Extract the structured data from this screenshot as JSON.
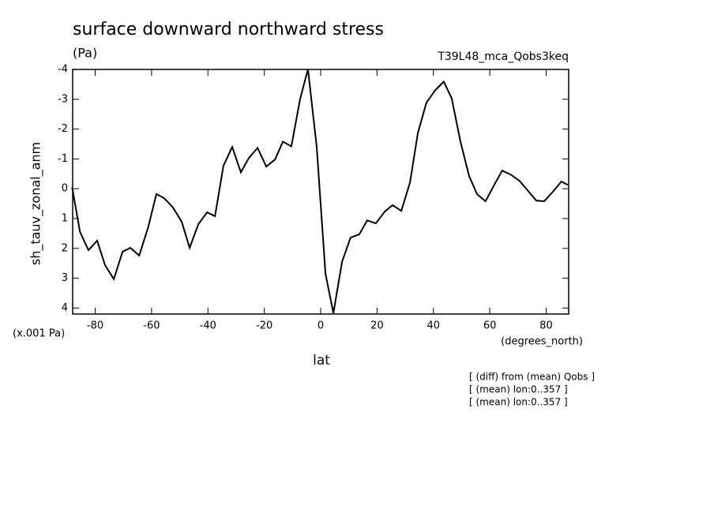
{
  "chart_data": {
    "type": "line",
    "title": "surface downward northward stress",
    "subtitle": "(Pa)",
    "run_label": "T39L48_mca_Qobs3keq",
    "y_label": "sh_tauv_zonal_anm",
    "y_units": "(x.001 Pa)",
    "x_units": "(degrees_north)",
    "x_label": "lat",
    "notes": [
      "[ (diff) from (mean) Qobs ]",
      "[ (mean) lon:0..357 ]",
      "[ (mean) lon:0..357 ]"
    ],
    "y_inverted": true,
    "color": "#000000",
    "xlim": [
      -88,
      88
    ],
    "xticks": [
      -80,
      -60,
      -40,
      -20,
      0,
      20,
      40,
      60,
      80
    ],
    "ylim": [
      -4,
      4.2
    ],
    "yticks": [
      -4,
      -3,
      -2,
      -1,
      0,
      1,
      2,
      3,
      4
    ],
    "x": [
      -88.2,
      -85.4,
      -82.4,
      -79.3,
      -76.5,
      -73.4,
      -70.3,
      -67.5,
      -64.4,
      -61.3,
      -58.3,
      -55.5,
      -52.4,
      -49.3,
      -46.5,
      -43.4,
      -40.3,
      -37.5,
      -34.5,
      -31.4,
      -28.3,
      -25.5,
      -22.4,
      -19.3,
      -16.2,
      -13.4,
      -10.4,
      -7.3,
      -4.5,
      -1.4,
      1.7,
      4.5,
      7.6,
      10.6,
      13.7,
      16.5,
      19.6,
      22.7,
      25.5,
      28.6,
      31.7,
      34.5,
      37.5,
      40.6,
      43.7,
      46.5,
      49.6,
      52.7,
      55.5,
      58.5,
      61.6,
      64.4,
      67.5,
      70.6,
      73.4,
      76.5,
      79.3,
      82.6,
      85.4,
      87.7
    ],
    "values": [
      -0.05,
      1.45,
      2.06,
      1.74,
      2.56,
      3.03,
      2.11,
      1.98,
      2.24,
      1.32,
      0.18,
      0.32,
      0.63,
      1.11,
      1.98,
      1.19,
      0.79,
      0.92,
      -0.77,
      -1.4,
      -0.55,
      -1.03,
      -1.37,
      -0.74,
      -0.98,
      -1.58,
      -1.42,
      -3.01,
      -4.01,
      -1.4,
      2.85,
      4.17,
      2.45,
      1.64,
      1.53,
      1.06,
      1.16,
      0.77,
      0.55,
      0.74,
      -0.21,
      -1.87,
      -2.88,
      -3.3,
      -3.59,
      -3.03,
      -1.58,
      -0.42,
      0.18,
      0.42,
      -0.13,
      -0.61,
      -0.47,
      -0.26,
      0.05,
      0.4,
      0.42,
      0.08,
      -0.24,
      -0.13
    ]
  }
}
